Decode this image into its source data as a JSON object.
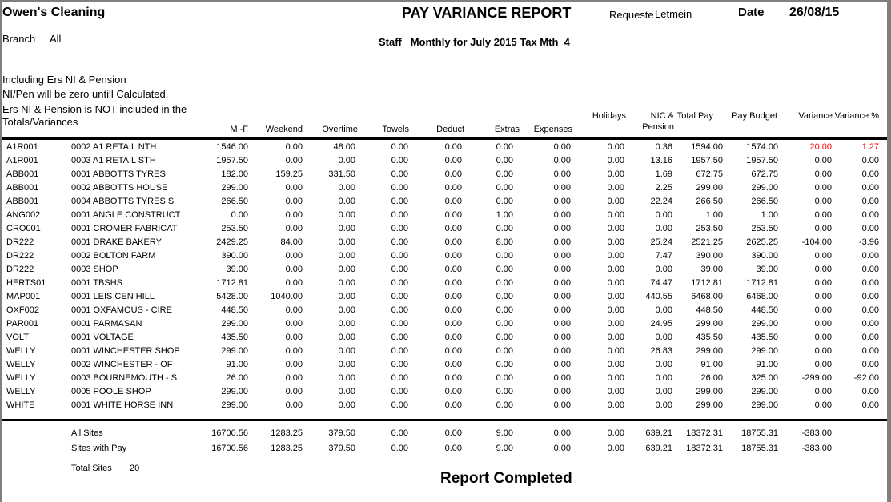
{
  "report": {
    "company": "Owen's Cleaning",
    "title": "PAY VARIANCE REPORT",
    "requester_label": "Requester",
    "requester_value": "Letmein",
    "date_label": "Date",
    "date_value": "26/08/15",
    "branch_label": "Branch",
    "branch_value": "All",
    "subtitle": "Staff   Monthly for July 2015 Tax Mth  4",
    "notes": [
      "Including Ers NI & Pension",
      "NI/Pen will be zero untill Calculated.",
      "Ers NI & Pension is NOT included in the Totals/Variances"
    ],
    "completed_text": "Report Completed"
  },
  "columns": {
    "mf": "M -F",
    "weekend": "Weekend",
    "overtime": "Overtime",
    "towels": "Towels",
    "deduct": "Deduct",
    "extras": "Extras",
    "expenses": "Expenses",
    "holidays": "Holidays",
    "nic_line1": "NIC &",
    "nic_line2": "Pension",
    "total_pay": "Total Pay",
    "pay_budget": "Pay Budget",
    "variance": "Variance",
    "variance_pct": "Variance %"
  },
  "rows": [
    {
      "code": "A1R001",
      "site": "0002 A1 RETAIL NTH",
      "mf": "1546.00",
      "weekend": "0.00",
      "overtime": "48.00",
      "towels": "0.00",
      "deduct": "0.00",
      "extras": "0.00",
      "expenses": "0.00",
      "holidays": "0.00",
      "nic": "0.36",
      "total_pay": "1594.00",
      "pay_budget": "1574.00",
      "variance": "20.00",
      "variance_pct": "1.27",
      "highlight": true
    },
    {
      "code": "A1R001",
      "site": "0003 A1 RETAIL STH",
      "mf": "1957.50",
      "weekend": "0.00",
      "overtime": "0.00",
      "towels": "0.00",
      "deduct": "0.00",
      "extras": "0.00",
      "expenses": "0.00",
      "holidays": "0.00",
      "nic": "13.16",
      "total_pay": "1957.50",
      "pay_budget": "1957.50",
      "variance": "0.00",
      "variance_pct": "0.00"
    },
    {
      "code": "ABB001",
      "site": "0001 ABBOTTS TYRES",
      "mf": "182.00",
      "weekend": "159.25",
      "overtime": "331.50",
      "towels": "0.00",
      "deduct": "0.00",
      "extras": "0.00",
      "expenses": "0.00",
      "holidays": "0.00",
      "nic": "1.69",
      "total_pay": "672.75",
      "pay_budget": "672.75",
      "variance": "0.00",
      "variance_pct": "0.00"
    },
    {
      "code": "ABB001",
      "site": "0002 ABBOTTS HOUSE",
      "mf": "299.00",
      "weekend": "0.00",
      "overtime": "0.00",
      "towels": "0.00",
      "deduct": "0.00",
      "extras": "0.00",
      "expenses": "0.00",
      "holidays": "0.00",
      "nic": "2.25",
      "total_pay": "299.00",
      "pay_budget": "299.00",
      "variance": "0.00",
      "variance_pct": "0.00"
    },
    {
      "code": "ABB001",
      "site": "0004 ABBOTTS TYRES S",
      "mf": "266.50",
      "weekend": "0.00",
      "overtime": "0.00",
      "towels": "0.00",
      "deduct": "0.00",
      "extras": "0.00",
      "expenses": "0.00",
      "holidays": "0.00",
      "nic": "22.24",
      "total_pay": "266.50",
      "pay_budget": "266.50",
      "variance": "0.00",
      "variance_pct": "0.00"
    },
    {
      "code": "ANG002",
      "site": "0001 ANGLE CONSTRUCT",
      "mf": "0.00",
      "weekend": "0.00",
      "overtime": "0.00",
      "towels": "0.00",
      "deduct": "0.00",
      "extras": "1.00",
      "expenses": "0.00",
      "holidays": "0.00",
      "nic": "0.00",
      "total_pay": "1.00",
      "pay_budget": "1.00",
      "variance": "0.00",
      "variance_pct": "0.00"
    },
    {
      "code": "CRO001",
      "site": "0001 CROMER FABRICAT",
      "mf": "253.50",
      "weekend": "0.00",
      "overtime": "0.00",
      "towels": "0.00",
      "deduct": "0.00",
      "extras": "0.00",
      "expenses": "0.00",
      "holidays": "0.00",
      "nic": "0.00",
      "total_pay": "253.50",
      "pay_budget": "253.50",
      "variance": "0.00",
      "variance_pct": "0.00"
    },
    {
      "code": "DR222",
      "site": "0001 DRAKE BAKERY",
      "mf": "2429.25",
      "weekend": "84.00",
      "overtime": "0.00",
      "towels": "0.00",
      "deduct": "0.00",
      "extras": "8.00",
      "expenses": "0.00",
      "holidays": "0.00",
      "nic": "25.24",
      "total_pay": "2521.25",
      "pay_budget": "2625.25",
      "variance": "-104.00",
      "variance_pct": "-3.96"
    },
    {
      "code": "DR222",
      "site": "0002 BOLTON FARM",
      "mf": "390.00",
      "weekend": "0.00",
      "overtime": "0.00",
      "towels": "0.00",
      "deduct": "0.00",
      "extras": "0.00",
      "expenses": "0.00",
      "holidays": "0.00",
      "nic": "7.47",
      "total_pay": "390.00",
      "pay_budget": "390.00",
      "variance": "0.00",
      "variance_pct": "0.00"
    },
    {
      "code": "DR222",
      "site": "0003 SHOP",
      "mf": "39.00",
      "weekend": "0.00",
      "overtime": "0.00",
      "towels": "0.00",
      "deduct": "0.00",
      "extras": "0.00",
      "expenses": "0.00",
      "holidays": "0.00",
      "nic": "0.00",
      "total_pay": "39.00",
      "pay_budget": "39.00",
      "variance": "0.00",
      "variance_pct": "0.00"
    },
    {
      "code": "HERTS01",
      "site": "0001 TBSHS",
      "mf": "1712.81",
      "weekend": "0.00",
      "overtime": "0.00",
      "towels": "0.00",
      "deduct": "0.00",
      "extras": "0.00",
      "expenses": "0.00",
      "holidays": "0.00",
      "nic": "74.47",
      "total_pay": "1712.81",
      "pay_budget": "1712.81",
      "variance": "0.00",
      "variance_pct": "0.00"
    },
    {
      "code": "MAP001",
      "site": "0001 LEIS CEN HILL",
      "mf": "5428.00",
      "weekend": "1040.00",
      "overtime": "0.00",
      "towels": "0.00",
      "deduct": "0.00",
      "extras": "0.00",
      "expenses": "0.00",
      "holidays": "0.00",
      "nic": "440.55",
      "total_pay": "6468.00",
      "pay_budget": "6468.00",
      "variance": "0.00",
      "variance_pct": "0.00"
    },
    {
      "code": "OXF002",
      "site": "0001 OXFAMOUS - CIRE",
      "mf": "448.50",
      "weekend": "0.00",
      "overtime": "0.00",
      "towels": "0.00",
      "deduct": "0.00",
      "extras": "0.00",
      "expenses": "0.00",
      "holidays": "0.00",
      "nic": "0.00",
      "total_pay": "448.50",
      "pay_budget": "448.50",
      "variance": "0.00",
      "variance_pct": "0.00"
    },
    {
      "code": "PAR001",
      "site": "0001 PARMASAN",
      "mf": "299.00",
      "weekend": "0.00",
      "overtime": "0.00",
      "towels": "0.00",
      "deduct": "0.00",
      "extras": "0.00",
      "expenses": "0.00",
      "holidays": "0.00",
      "nic": "24.95",
      "total_pay": "299.00",
      "pay_budget": "299.00",
      "variance": "0.00",
      "variance_pct": "0.00"
    },
    {
      "code": "VOLT",
      "site": "0001 VOLTAGE",
      "mf": "435.50",
      "weekend": "0.00",
      "overtime": "0.00",
      "towels": "0.00",
      "deduct": "0.00",
      "extras": "0.00",
      "expenses": "0.00",
      "holidays": "0.00",
      "nic": "0.00",
      "total_pay": "435.50",
      "pay_budget": "435.50",
      "variance": "0.00",
      "variance_pct": "0.00"
    },
    {
      "code": "WELLY",
      "site": "0001 WINCHESTER SHOP",
      "mf": "299.00",
      "weekend": "0.00",
      "overtime": "0.00",
      "towels": "0.00",
      "deduct": "0.00",
      "extras": "0.00",
      "expenses": "0.00",
      "holidays": "0.00",
      "nic": "26.83",
      "total_pay": "299.00",
      "pay_budget": "299.00",
      "variance": "0.00",
      "variance_pct": "0.00"
    },
    {
      "code": "WELLY",
      "site": "0002 WINCHESTER - OF",
      "mf": "91.00",
      "weekend": "0.00",
      "overtime": "0.00",
      "towels": "0.00",
      "deduct": "0.00",
      "extras": "0.00",
      "expenses": "0.00",
      "holidays": "0.00",
      "nic": "0.00",
      "total_pay": "91.00",
      "pay_budget": "91.00",
      "variance": "0.00",
      "variance_pct": "0.00"
    },
    {
      "code": "WELLY",
      "site": "0003 BOURNEMOUTH - S",
      "mf": "26.00",
      "weekend": "0.00",
      "overtime": "0.00",
      "towels": "0.00",
      "deduct": "0.00",
      "extras": "0.00",
      "expenses": "0.00",
      "holidays": "0.00",
      "nic": "0.00",
      "total_pay": "26.00",
      "pay_budget": "325.00",
      "variance": "-299.00",
      "variance_pct": "-92.00"
    },
    {
      "code": "WELLY",
      "site": "0005 POOLE SHOP",
      "mf": "299.00",
      "weekend": "0.00",
      "overtime": "0.00",
      "towels": "0.00",
      "deduct": "0.00",
      "extras": "0.00",
      "expenses": "0.00",
      "holidays": "0.00",
      "nic": "0.00",
      "total_pay": "299.00",
      "pay_budget": "299.00",
      "variance": "0.00",
      "variance_pct": "0.00"
    },
    {
      "code": "WHITE",
      "site": "0001 WHITE HORSE INN",
      "mf": "299.00",
      "weekend": "0.00",
      "overtime": "0.00",
      "towels": "0.00",
      "deduct": "0.00",
      "extras": "0.00",
      "expenses": "0.00",
      "holidays": "0.00",
      "nic": "0.00",
      "total_pay": "299.00",
      "pay_budget": "299.00",
      "variance": "0.00",
      "variance_pct": "0.00"
    }
  ],
  "totals": [
    {
      "label": "All Sites",
      "mf": "16700.56",
      "weekend": "1283.25",
      "overtime": "379.50",
      "towels": "0.00",
      "deduct": "0.00",
      "extras": "9.00",
      "expenses": "0.00",
      "holidays": "0.00",
      "nic": "639.21",
      "total_pay": "18372.31",
      "pay_budget": "18755.31",
      "variance": "-383.00"
    },
    {
      "label": "Sites with Pay",
      "mf": "16700.56",
      "weekend": "1283.25",
      "overtime": "379.50",
      "towels": "0.00",
      "deduct": "0.00",
      "extras": "9.00",
      "expenses": "0.00",
      "holidays": "0.00",
      "nic": "639.21",
      "total_pay": "18372.31",
      "pay_budget": "18755.31",
      "variance": "-383.00"
    }
  ],
  "summary": {
    "total_sites_label": "Total Sites",
    "total_sites_value": "20"
  },
  "colors": {
    "highlight": "#ff0000",
    "frame": "#808080"
  }
}
